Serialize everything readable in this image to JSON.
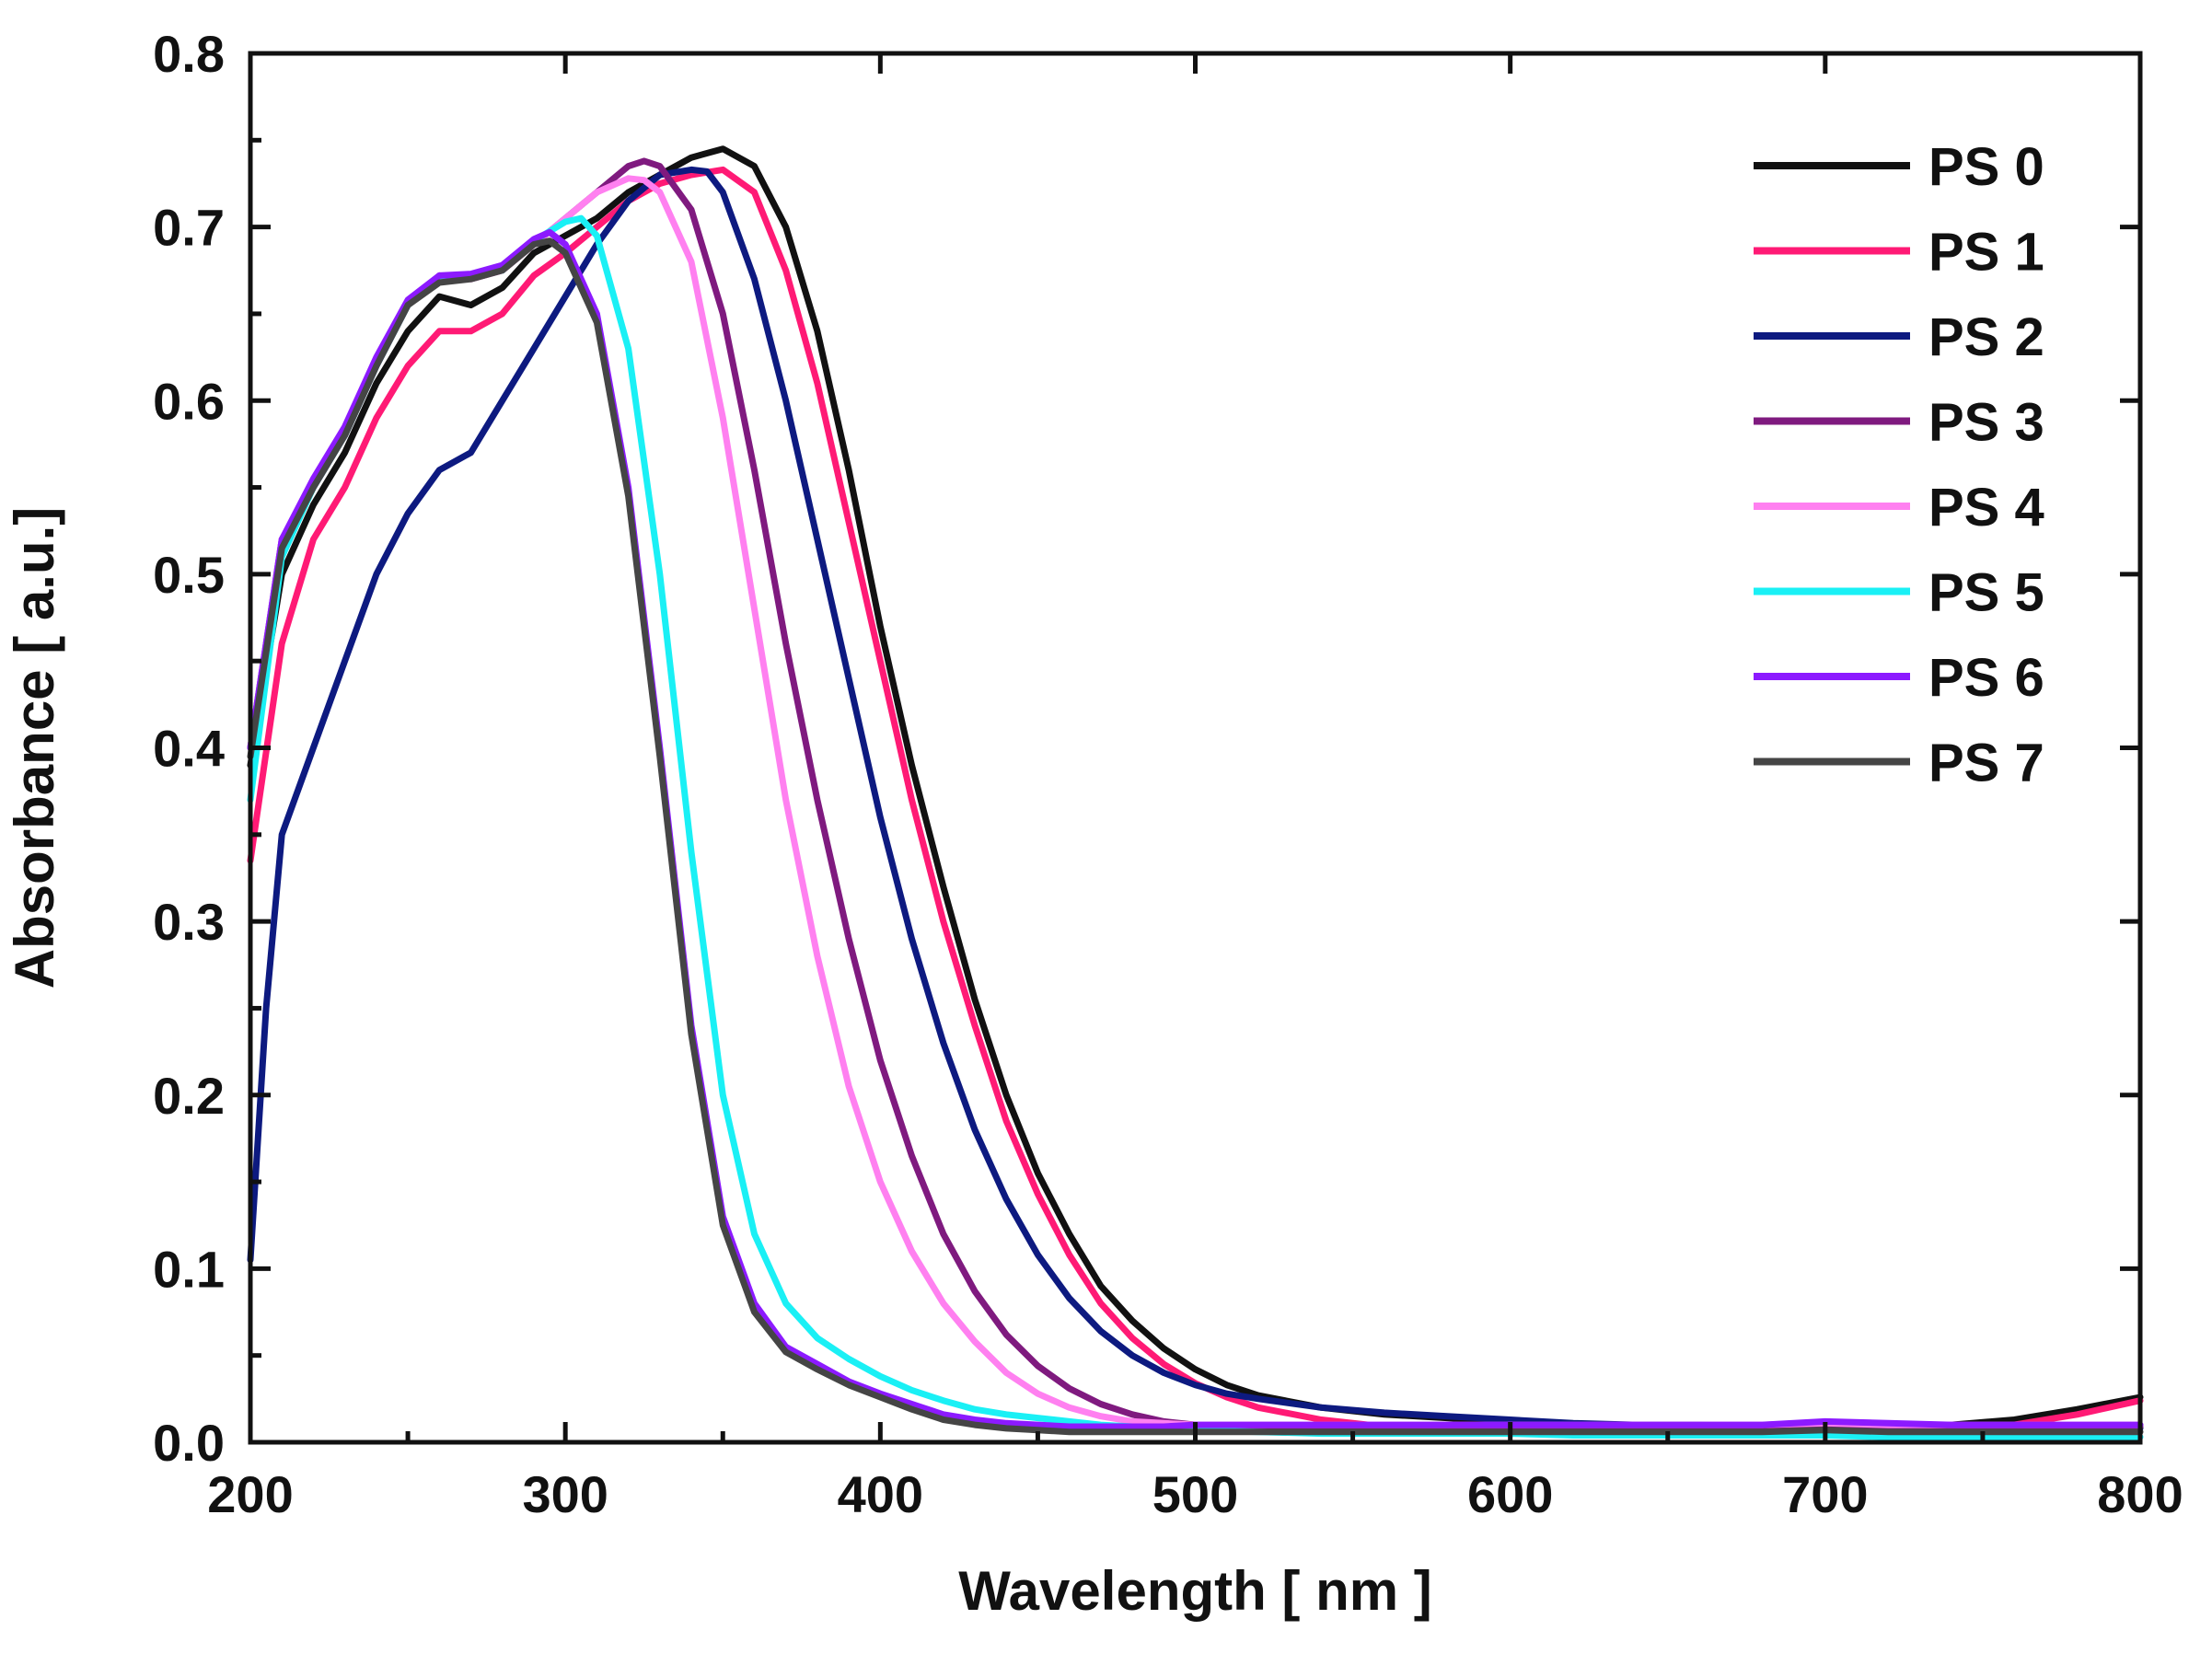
{
  "chart_data": {
    "type": "line",
    "title": "",
    "xlabel": "Wavelength [ nm ]",
    "ylabel": "Absorbance [ a.u.]",
    "xlim": [
      200,
      800
    ],
    "ylim": [
      0.0,
      0.8
    ],
    "x_ticks": [
      200,
      300,
      400,
      500,
      600,
      700,
      800
    ],
    "x_tick_labels": [
      "200",
      "300",
      "400",
      "500",
      "600",
      "700",
      "800"
    ],
    "y_ticks": [
      0.0,
      0.1,
      0.2,
      0.3,
      0.4,
      0.5,
      0.6,
      0.7,
      0.8
    ],
    "y_tick_labels": [
      "0.0",
      "0.1",
      "0.2",
      "0.3",
      "0.4",
      "0.5",
      "0.6",
      "0.7",
      "0.8"
    ],
    "grid": false,
    "legend_position": "top-right",
    "series": [
      {
        "name": "PS 0",
        "color": "#111111",
        "x": [
          200,
          210,
          220,
          230,
          240,
          250,
          260,
          270,
          280,
          290,
          300,
          310,
          320,
          330,
          340,
          350,
          360,
          370,
          380,
          390,
          400,
          410,
          420,
          430,
          440,
          450,
          460,
          470,
          480,
          490,
          500,
          510,
          520,
          540,
          560,
          580,
          600,
          620,
          640,
          660,
          680,
          700,
          720,
          740,
          760,
          780,
          800
        ],
        "y": [
          0.39,
          0.5,
          0.54,
          0.57,
          0.61,
          0.64,
          0.66,
          0.655,
          0.665,
          0.685,
          0.695,
          0.705,
          0.72,
          0.73,
          0.74,
          0.745,
          0.735,
          0.7,
          0.64,
          0.56,
          0.47,
          0.39,
          0.32,
          0.255,
          0.2,
          0.155,
          0.12,
          0.09,
          0.07,
          0.054,
          0.042,
          0.033,
          0.027,
          0.02,
          0.016,
          0.014,
          0.012,
          0.01,
          0.009,
          0.009,
          0.008,
          0.01,
          0.009,
          0.01,
          0.013,
          0.019,
          0.026
        ]
      },
      {
        "name": "PS 1",
        "color": "#ff1a75",
        "x": [
          200,
          210,
          220,
          230,
          240,
          250,
          260,
          270,
          280,
          290,
          300,
          310,
          320,
          330,
          340,
          350,
          360,
          370,
          380,
          390,
          400,
          410,
          420,
          430,
          440,
          450,
          460,
          470,
          480,
          490,
          500,
          510,
          520,
          540,
          560,
          580,
          600,
          620,
          640,
          660,
          680,
          700,
          720,
          740,
          760,
          780,
          800
        ],
        "y": [
          0.335,
          0.46,
          0.52,
          0.55,
          0.59,
          0.62,
          0.64,
          0.64,
          0.65,
          0.672,
          0.685,
          0.7,
          0.715,
          0.725,
          0.73,
          0.733,
          0.72,
          0.675,
          0.61,
          0.53,
          0.45,
          0.37,
          0.3,
          0.24,
          0.185,
          0.143,
          0.108,
          0.08,
          0.06,
          0.045,
          0.034,
          0.026,
          0.02,
          0.013,
          0.009,
          0.007,
          0.006,
          0.005,
          0.005,
          0.005,
          0.004,
          0.006,
          0.006,
          0.007,
          0.01,
          0.016,
          0.024
        ]
      },
      {
        "name": "PS 2",
        "color": "#0d1a80",
        "x": [
          200,
          205,
          210,
          220,
          230,
          240,
          250,
          260,
          270,
          280,
          290,
          300,
          310,
          320,
          330,
          340,
          345,
          350,
          360,
          370,
          380,
          390,
          400,
          410,
          420,
          430,
          440,
          450,
          460,
          470,
          480,
          490,
          500,
          510,
          520,
          540,
          560,
          580,
          600,
          620,
          640,
          660,
          680,
          700,
          720,
          740,
          760,
          780,
          800
        ],
        "y": [
          0.105,
          0.25,
          0.35,
          0.4,
          0.45,
          0.5,
          0.535,
          0.56,
          0.57,
          0.6,
          0.63,
          0.66,
          0.69,
          0.715,
          0.73,
          0.733,
          0.732,
          0.72,
          0.67,
          0.6,
          0.52,
          0.44,
          0.36,
          0.29,
          0.23,
          0.18,
          0.14,
          0.108,
          0.083,
          0.064,
          0.05,
          0.04,
          0.033,
          0.028,
          0.025,
          0.02,
          0.017,
          0.015,
          0.013,
          0.011,
          0.01,
          0.01,
          0.009,
          0.01,
          0.008,
          0.008,
          0.008,
          0.008,
          0.008
        ]
      },
      {
        "name": "PS 3",
        "color": "#7f1a7f",
        "x": [
          200,
          210,
          220,
          230,
          240,
          250,
          260,
          270,
          280,
          290,
          300,
          310,
          320,
          325,
          330,
          340,
          350,
          360,
          370,
          380,
          390,
          400,
          410,
          420,
          430,
          440,
          450,
          460,
          470,
          480,
          490,
          500,
          510,
          520,
          540,
          560,
          580,
          600,
          620,
          640,
          660,
          680,
          700,
          720,
          740,
          760,
          780,
          800
        ],
        "y": [
          0.4,
          0.52,
          0.55,
          0.58,
          0.62,
          0.655,
          0.672,
          0.67,
          0.675,
          0.69,
          0.705,
          0.72,
          0.735,
          0.738,
          0.735,
          0.71,
          0.65,
          0.56,
          0.46,
          0.37,
          0.29,
          0.22,
          0.165,
          0.12,
          0.087,
          0.062,
          0.044,
          0.031,
          0.022,
          0.016,
          0.012,
          0.01,
          0.009,
          0.009,
          0.009,
          0.009,
          0.009,
          0.009,
          0.009,
          0.009,
          0.009,
          0.009,
          0.01,
          0.009,
          0.009,
          0.009,
          0.009,
          0.009
        ]
      },
      {
        "name": "PS 4",
        "color": "#ff80f0",
        "x": [
          200,
          210,
          220,
          230,
          240,
          250,
          260,
          270,
          280,
          290,
          300,
          310,
          320,
          325,
          330,
          340,
          350,
          360,
          370,
          380,
          390,
          400,
          410,
          420,
          430,
          440,
          450,
          460,
          470,
          480,
          490,
          500,
          520,
          540,
          560,
          580,
          600,
          620,
          640,
          660,
          680,
          700,
          720,
          740,
          760,
          780,
          800
        ],
        "y": [
          0.4,
          0.52,
          0.55,
          0.58,
          0.62,
          0.655,
          0.672,
          0.67,
          0.675,
          0.69,
          0.705,
          0.72,
          0.728,
          0.727,
          0.72,
          0.68,
          0.59,
          0.48,
          0.37,
          0.28,
          0.205,
          0.15,
          0.11,
          0.08,
          0.058,
          0.04,
          0.028,
          0.02,
          0.015,
          0.012,
          0.011,
          0.01,
          0.01,
          0.01,
          0.01,
          0.01,
          0.01,
          0.01,
          0.01,
          0.01,
          0.01,
          0.011,
          0.01,
          0.01,
          0.01,
          0.01,
          0.01
        ]
      },
      {
        "name": "PS 5",
        "color": "#1af0f5",
        "x": [
          200,
          210,
          220,
          230,
          240,
          250,
          260,
          270,
          280,
          290,
          300,
          305,
          310,
          320,
          330,
          340,
          350,
          360,
          370,
          380,
          390,
          400,
          410,
          420,
          430,
          440,
          450,
          460,
          470,
          480,
          490,
          500,
          520,
          540,
          560,
          580,
          600,
          620,
          640,
          660,
          680,
          700,
          720,
          740,
          760,
          780,
          800
        ],
        "y": [
          0.37,
          0.51,
          0.55,
          0.58,
          0.62,
          0.655,
          0.67,
          0.672,
          0.675,
          0.692,
          0.703,
          0.705,
          0.695,
          0.63,
          0.5,
          0.34,
          0.2,
          0.12,
          0.08,
          0.06,
          0.048,
          0.038,
          0.03,
          0.024,
          0.019,
          0.016,
          0.014,
          0.012,
          0.01,
          0.009,
          0.008,
          0.007,
          0.006,
          0.005,
          0.005,
          0.005,
          0.005,
          0.004,
          0.004,
          0.004,
          0.004,
          0.004,
          0.003,
          0.003,
          0.003,
          0.003,
          0.003
        ]
      },
      {
        "name": "PS 6",
        "color": "#8c1aff",
        "x": [
          200,
          210,
          220,
          230,
          240,
          250,
          260,
          270,
          280,
          290,
          295,
          300,
          310,
          320,
          330,
          340,
          350,
          360,
          370,
          380,
          390,
          400,
          410,
          420,
          430,
          440,
          450,
          460,
          470,
          480,
          490,
          500,
          520,
          540,
          560,
          580,
          600,
          620,
          640,
          660,
          680,
          700,
          720,
          740,
          760,
          780,
          800
        ],
        "y": [
          0.4,
          0.52,
          0.555,
          0.585,
          0.625,
          0.658,
          0.672,
          0.673,
          0.678,
          0.693,
          0.697,
          0.69,
          0.65,
          0.55,
          0.4,
          0.24,
          0.13,
          0.08,
          0.055,
          0.045,
          0.035,
          0.028,
          0.022,
          0.016,
          0.013,
          0.011,
          0.01,
          0.009,
          0.009,
          0.009,
          0.009,
          0.01,
          0.01,
          0.01,
          0.01,
          0.01,
          0.01,
          0.01,
          0.01,
          0.01,
          0.01,
          0.012,
          0.011,
          0.01,
          0.01,
          0.01,
          0.01
        ]
      },
      {
        "name": "PS 7",
        "color": "#454545",
        "x": [
          200,
          210,
          220,
          230,
          240,
          250,
          260,
          270,
          280,
          290,
          295,
          300,
          310,
          320,
          330,
          340,
          350,
          360,
          370,
          380,
          390,
          400,
          410,
          420,
          430,
          440,
          450,
          460,
          470,
          480,
          490,
          500,
          520,
          540,
          560,
          580,
          600,
          620,
          640,
          660,
          680,
          700,
          720,
          740,
          760,
          780,
          800
        ],
        "y": [
          0.395,
          0.515,
          0.55,
          0.58,
          0.62,
          0.655,
          0.668,
          0.67,
          0.675,
          0.69,
          0.692,
          0.685,
          0.645,
          0.545,
          0.395,
          0.235,
          0.125,
          0.075,
          0.052,
          0.042,
          0.033,
          0.026,
          0.019,
          0.013,
          0.01,
          0.008,
          0.007,
          0.006,
          0.006,
          0.006,
          0.006,
          0.006,
          0.006,
          0.006,
          0.006,
          0.006,
          0.006,
          0.006,
          0.006,
          0.006,
          0.006,
          0.007,
          0.006,
          0.006,
          0.006,
          0.006,
          0.006
        ]
      }
    ]
  }
}
